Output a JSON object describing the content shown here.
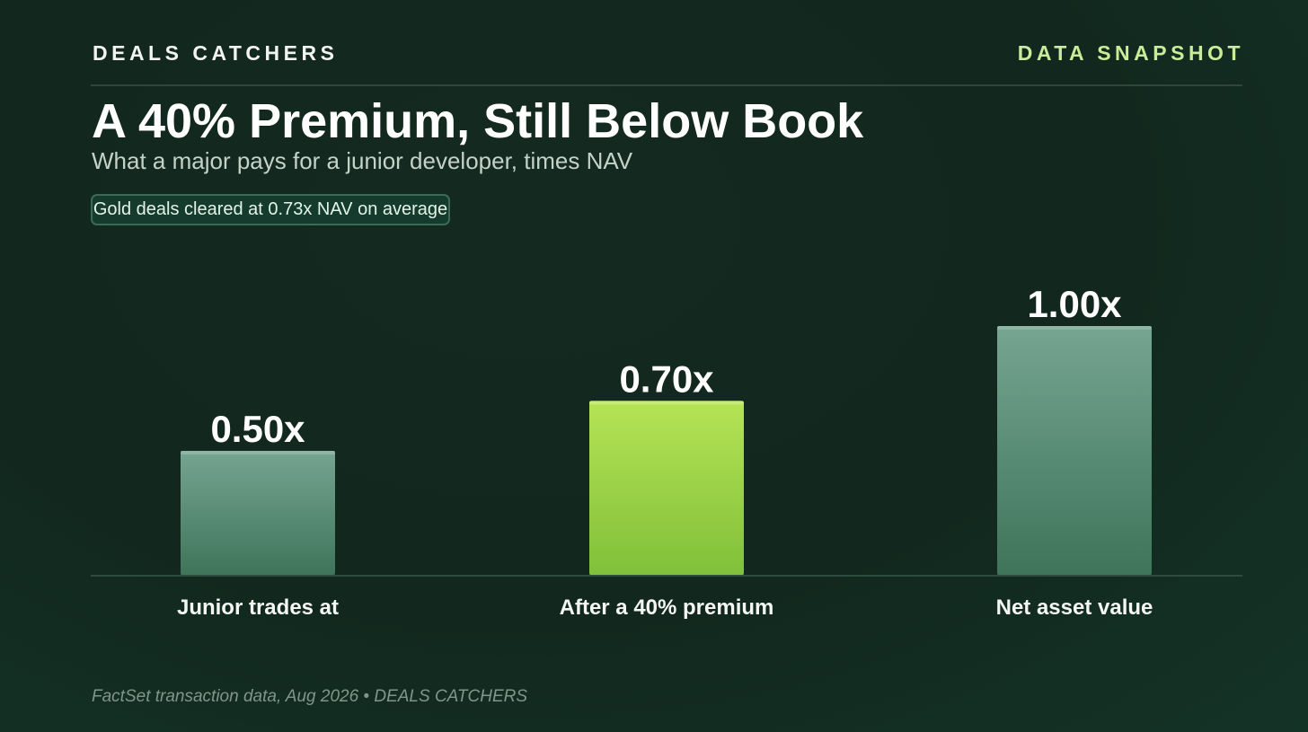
{
  "header": {
    "brand": "DEALS CATCHERS",
    "tag": "DATA SNAPSHOT",
    "title": "A 40% Premium, Still Below Book",
    "subtitle": "What a major pays for a junior developer, times NAV",
    "callout": "Gold deals cleared at 0.73x NAV on average"
  },
  "footer": {
    "source": "FactSet transaction data, Aug 2026 • DEALS CATCHERS"
  },
  "colors": {
    "background": "#12281e",
    "accent_bar": "#a6dd4e",
    "neutral_bar": "#5f9a82",
    "tag_text": "#c9ec9a"
  },
  "chart_data": {
    "type": "bar",
    "categories": [
      "Junior trades at",
      "After a 40% premium",
      "Net asset value"
    ],
    "values": [
      0.5,
      0.7,
      1.0
    ],
    "value_labels": [
      "0.50x",
      "0.70x",
      "1.00x"
    ],
    "highlight_index": 1,
    "ylim": [
      0,
      1.0
    ],
    "grid": false,
    "legend": "none"
  }
}
